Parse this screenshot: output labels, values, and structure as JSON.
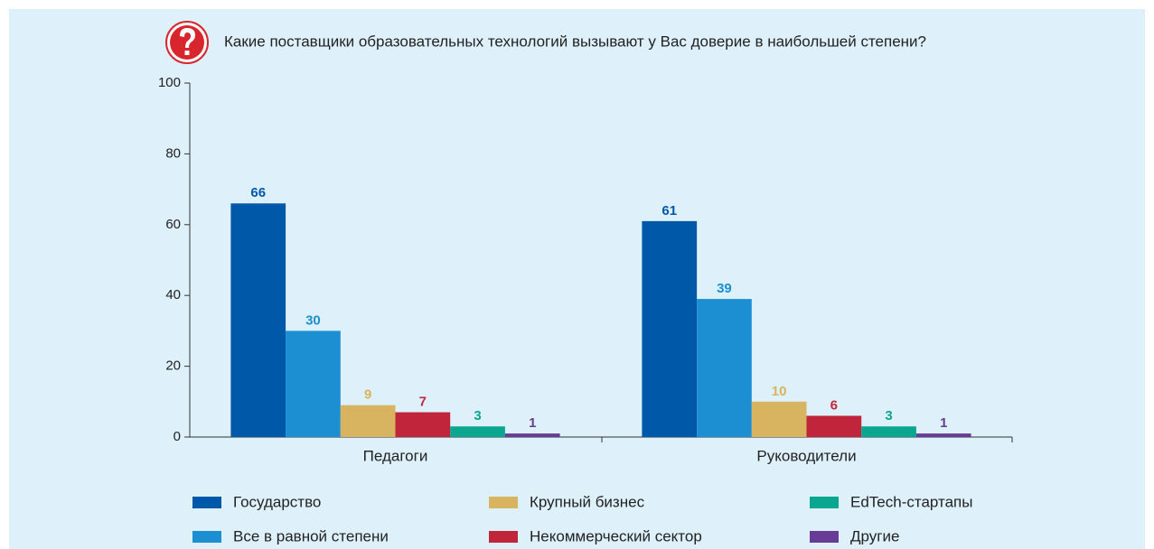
{
  "chart_data": {
    "type": "bar",
    "title": "Какие поставщики образовательных технологий вызывают у Вас доверие в наибольшей степени?",
    "categories": [
      "Педагоги",
      "Руководители"
    ],
    "series": [
      {
        "name": "Государство",
        "color": "#0058a9",
        "values": [
          66,
          61
        ]
      },
      {
        "name": "Все в равной степени",
        "color": "#1b8fd1",
        "values": [
          30,
          39
        ]
      },
      {
        "name": "Крупный бизнес",
        "color": "#d8b460",
        "values": [
          9,
          10
        ]
      },
      {
        "name": "Некоммерческий сектор",
        "color": "#c1253b",
        "values": [
          7,
          6
        ]
      },
      {
        "name": "EdTech-стартапы",
        "color": "#0aa68f",
        "values": [
          3,
          3
        ]
      },
      {
        "name": "Другие",
        "color": "#673c97",
        "values": [
          1,
          1
        ]
      }
    ],
    "ylim": [
      0,
      100
    ],
    "yticks": [
      0,
      20,
      40,
      60,
      80,
      100
    ]
  }
}
